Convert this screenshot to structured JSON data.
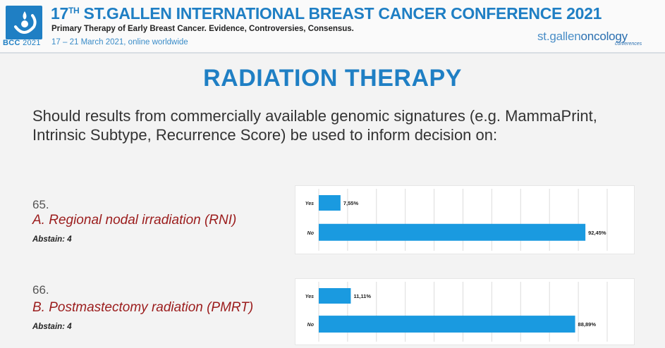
{
  "header": {
    "logo_label": "BCC",
    "logo_year": "2021",
    "conference_number": "17",
    "conference_suffix": "TH",
    "conference_title": "ST.GALLEN INTERNATIONAL BREAST CANCER CONFERENCE 2021",
    "subtitle": "Primary Therapy of Early Breast Cancer. Evidence, Controversies, Consensus.",
    "dates": "17 – 21 March 2021, online worldwide",
    "brand_left": "st.gallen",
    "brand_right": "oncology",
    "brand_small": "conferences"
  },
  "slide": {
    "title": "RADIATION THERAPY",
    "question": "Should results from commercially available genomic signatures (e.g. MammaPrint, Intrinsic Subtype, Recurrence Score) be used to inform decision on:"
  },
  "questions": [
    {
      "number": "65.",
      "label": "A. Regional nodal irradiation (RNI)",
      "abstain": "Abstain: 4"
    },
    {
      "number": "66.",
      "label": "B. Postmastectomy radiation (PMRT)",
      "abstain": "Abstain: 4"
    }
  ],
  "colors": {
    "accent": "#1f7fc4",
    "bar": "#1a9ae0",
    "question_label": "#9b1c1c"
  },
  "chart_data": [
    {
      "type": "bar",
      "orientation": "horizontal",
      "categories": [
        "Yes",
        "No"
      ],
      "values": [
        7.55,
        92.45
      ],
      "value_labels": [
        "7,55%",
        "92,45%"
      ],
      "xlim": [
        0,
        100
      ],
      "grid": true
    },
    {
      "type": "bar",
      "orientation": "horizontal",
      "categories": [
        "Yes",
        "No"
      ],
      "values": [
        11.11,
        88.89
      ],
      "value_labels": [
        "11,11%",
        "88,89%"
      ],
      "xlim": [
        0,
        100
      ],
      "grid": true
    }
  ]
}
